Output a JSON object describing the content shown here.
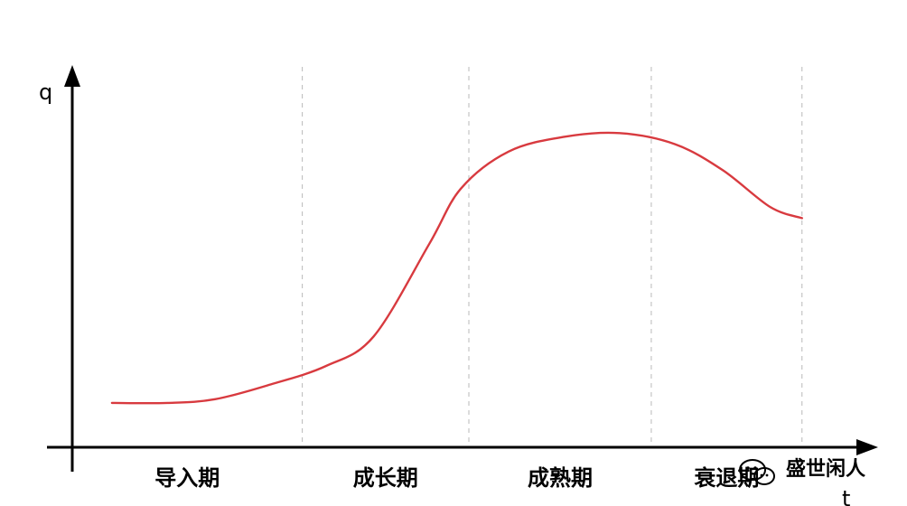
{
  "chart_data": {
    "type": "line",
    "title": "",
    "xlabel": "t",
    "ylabel": "q",
    "categories": [
      "导入期",
      "成长期",
      "成熟期",
      "衰退期"
    ],
    "grid": false,
    "legend": "none",
    "series": [
      {
        "values": [
          {
            "x": 0.05,
            "y": 0.12
          },
          {
            "x": 0.12,
            "y": 0.12
          },
          {
            "x": 0.18,
            "y": 0.13
          },
          {
            "x": 0.25,
            "y": 0.17
          },
          {
            "x": 0.32,
            "y": 0.22
          },
          {
            "x": 0.38,
            "y": 0.3
          },
          {
            "x": 0.45,
            "y": 0.55
          },
          {
            "x": 0.49,
            "y": 0.7
          },
          {
            "x": 0.55,
            "y": 0.8
          },
          {
            "x": 0.62,
            "y": 0.84
          },
          {
            "x": 0.69,
            "y": 0.85
          },
          {
            "x": 0.76,
            "y": 0.82
          },
          {
            "x": 0.82,
            "y": 0.75
          },
          {
            "x": 0.88,
            "y": 0.65
          },
          {
            "x": 0.92,
            "y": 0.62
          }
        ]
      }
    ],
    "phase_boundaries": [
      0.29,
      0.5,
      0.73,
      0.92
    ],
    "colors": {
      "curve": "#d83a3f",
      "axis": "#000000",
      "divider": "#b9b9b9"
    }
  },
  "watermark": {
    "text": "盛世闲人",
    "icon": "wechat-icon"
  }
}
